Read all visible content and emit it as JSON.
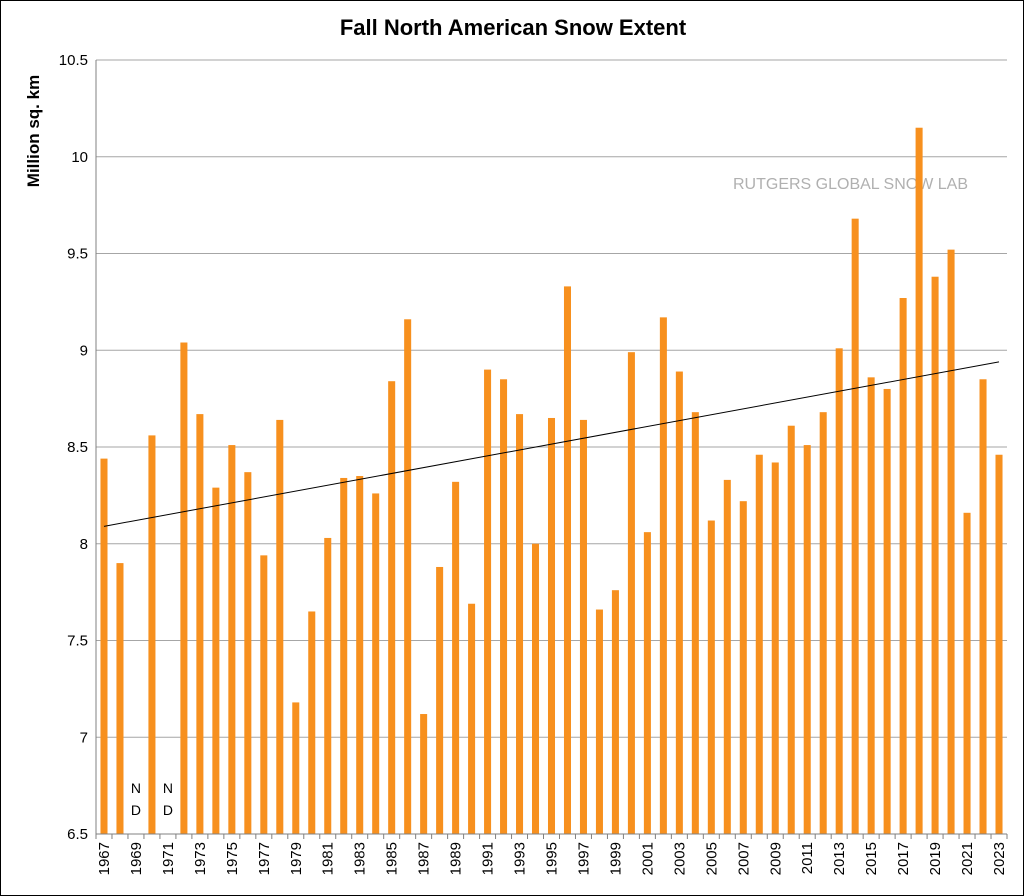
{
  "chart_data": {
    "type": "bar",
    "title": "Fall North American Snow Extent",
    "ylabel": "Million sq. km",
    "xlabel": "",
    "watermark": "RUTGERS GLOBAL SNOW LAB",
    "ylim": [
      6.5,
      10.5
    ],
    "yticks": [
      "6.5",
      "7",
      "7.5",
      "8",
      "8.5",
      "9",
      "9.5",
      "10",
      "10.5"
    ],
    "grid": true,
    "bar_color": "#f7901e",
    "trend_line": {
      "start": 8.09,
      "end": 8.94
    },
    "missing_label": "N D",
    "categories": [
      "1967",
      "1968",
      "1969",
      "1970",
      "1971",
      "1972",
      "1973",
      "1974",
      "1975",
      "1976",
      "1977",
      "1978",
      "1979",
      "1980",
      "1981",
      "1982",
      "1983",
      "1984",
      "1985",
      "1986",
      "1987",
      "1988",
      "1989",
      "1990",
      "1991",
      "1992",
      "1993",
      "1994",
      "1995",
      "1996",
      "1997",
      "1998",
      "1999",
      "2000",
      "2001",
      "2002",
      "2003",
      "2004",
      "2005",
      "2006",
      "2007",
      "2008",
      "2009",
      "2010",
      "2011",
      "2012",
      "2013",
      "2014",
      "2015",
      "2016",
      "2017",
      "2018",
      "2019",
      "2020",
      "2021",
      "2022",
      "2023"
    ],
    "xtick_labels": [
      "1967",
      "1969",
      "1971",
      "1973",
      "1975",
      "1977",
      "1979",
      "1981",
      "1983",
      "1985",
      "1987",
      "1989",
      "1991",
      "1993",
      "1995",
      "1997",
      "1999",
      "2001",
      "2003",
      "2005",
      "2007",
      "2009",
      "2011",
      "2013",
      "2015",
      "2017",
      "2019",
      "2021",
      "2023"
    ],
    "values": [
      8.44,
      7.9,
      null,
      8.56,
      null,
      9.04,
      8.67,
      8.29,
      8.51,
      8.37,
      7.94,
      8.64,
      7.18,
      7.65,
      8.03,
      8.34,
      8.35,
      8.26,
      8.84,
      9.16,
      7.12,
      7.88,
      8.32,
      7.69,
      8.9,
      8.85,
      8.67,
      8.0,
      8.65,
      9.33,
      8.64,
      7.66,
      7.76,
      8.99,
      8.06,
      9.17,
      8.89,
      8.68,
      8.12,
      8.33,
      8.22,
      8.46,
      8.42,
      8.61,
      8.51,
      8.68,
      9.01,
      9.68,
      8.86,
      8.8,
      9.27,
      10.15,
      9.38,
      9.52,
      8.16,
      8.85,
      8.46
    ]
  }
}
